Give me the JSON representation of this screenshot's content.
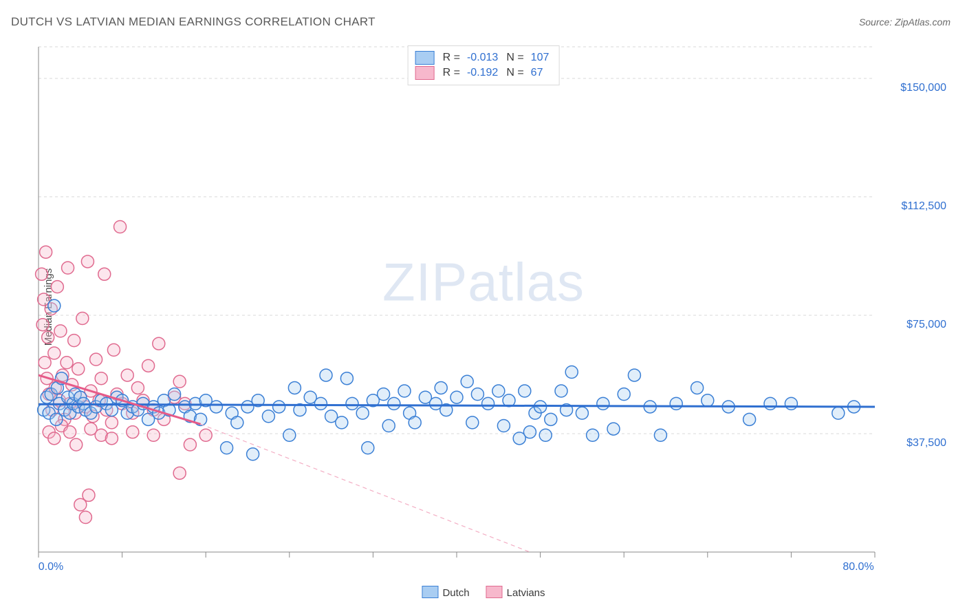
{
  "title": "DUTCH VS LATVIAN MEDIAN EARNINGS CORRELATION CHART",
  "source_label": "Source: ",
  "source_name": "ZipAtlas.com",
  "watermark": {
    "bold": "ZIP",
    "thin": "atlas"
  },
  "ylabel": "Median Earnings",
  "chart": {
    "type": "scatter",
    "background_color": "#ffffff",
    "grid_color": "#d9d9d9",
    "axis_color": "#888888",
    "xlim": [
      0,
      80
    ],
    "ylim": [
      0,
      160000
    ],
    "x_tick_positions": [
      0,
      8,
      16,
      24,
      32,
      40,
      48,
      56,
      64,
      72,
      80
    ],
    "x_tick_labels": {
      "0": "0.0%",
      "80": "80.0%"
    },
    "y_grid_values": [
      37500,
      75000,
      112500,
      150000
    ],
    "y_tick_labels": [
      "$37,500",
      "$75,000",
      "$112,500",
      "$150,000"
    ],
    "marker_radius": 9,
    "marker_stroke_width": 1.5,
    "marker_fill_opacity": 0.35,
    "series": [
      {
        "name": "Dutch",
        "label": "Dutch",
        "color_stroke": "#3a7fd5",
        "color_fill": "#a9cdf2",
        "R": "-0.013",
        "N": "107",
        "regression": {
          "x1": 0,
          "y1": 46800,
          "x2": 80,
          "y2": 46000,
          "stroke": "#2f6fd0",
          "width": 3,
          "dash": ""
        },
        "points": [
          [
            0.5,
            45000
          ],
          [
            0.8,
            49000
          ],
          [
            1.0,
            44000
          ],
          [
            1.2,
            50000
          ],
          [
            1.5,
            78000
          ],
          [
            1.7,
            42000
          ],
          [
            1.8,
            52000
          ],
          [
            2.0,
            47000
          ],
          [
            2.2,
            55000
          ],
          [
            2.5,
            45000
          ],
          [
            2.8,
            49000
          ],
          [
            3.0,
            44000
          ],
          [
            3.3,
            47000
          ],
          [
            3.5,
            50000
          ],
          [
            3.8,
            46000
          ],
          [
            4.0,
            49000
          ],
          [
            4.3,
            47000
          ],
          [
            4.5,
            45000
          ],
          [
            5.0,
            44000
          ],
          [
            5.5,
            46000
          ],
          [
            6.0,
            48000
          ],
          [
            6.5,
            47000
          ],
          [
            7.0,
            45000
          ],
          [
            7.5,
            49000
          ],
          [
            8.0,
            48000
          ],
          [
            8.5,
            44000
          ],
          [
            9.0,
            46000
          ],
          [
            9.5,
            45000
          ],
          [
            10.0,
            47000
          ],
          [
            10.5,
            42000
          ],
          [
            11.0,
            46000
          ],
          [
            11.5,
            44000
          ],
          [
            12.0,
            48000
          ],
          [
            12.5,
            45000
          ],
          [
            13.0,
            50000
          ],
          [
            14.0,
            46000
          ],
          [
            14.5,
            43000
          ],
          [
            15.0,
            47000
          ],
          [
            15.5,
            42000
          ],
          [
            16.0,
            48000
          ],
          [
            17.0,
            46000
          ],
          [
            18.0,
            33000
          ],
          [
            18.5,
            44000
          ],
          [
            19.0,
            41000
          ],
          [
            20.0,
            46000
          ],
          [
            20.5,
            31000
          ],
          [
            21.0,
            48000
          ],
          [
            22.0,
            43000
          ],
          [
            23.0,
            46000
          ],
          [
            24.0,
            37000
          ],
          [
            24.5,
            52000
          ],
          [
            25.0,
            45000
          ],
          [
            26.0,
            49000
          ],
          [
            27.0,
            47000
          ],
          [
            27.5,
            56000
          ],
          [
            28.0,
            43000
          ],
          [
            29.0,
            41000
          ],
          [
            29.5,
            55000
          ],
          [
            30.0,
            47000
          ],
          [
            31.0,
            44000
          ],
          [
            31.5,
            33000
          ],
          [
            32.0,
            48000
          ],
          [
            33.0,
            50000
          ],
          [
            33.5,
            40000
          ],
          [
            34.0,
            47000
          ],
          [
            35.0,
            51000
          ],
          [
            35.5,
            44000
          ],
          [
            36.0,
            41000
          ],
          [
            37.0,
            49000
          ],
          [
            38.0,
            47000
          ],
          [
            38.5,
            52000
          ],
          [
            39.0,
            45000
          ],
          [
            40.0,
            49000
          ],
          [
            41.0,
            54000
          ],
          [
            41.5,
            41000
          ],
          [
            42.0,
            50000
          ],
          [
            43.0,
            47000
          ],
          [
            44.0,
            51000
          ],
          [
            44.5,
            40000
          ],
          [
            45.0,
            48000
          ],
          [
            46.0,
            36000
          ],
          [
            46.5,
            51000
          ],
          [
            47.0,
            38000
          ],
          [
            47.5,
            44000
          ],
          [
            48.0,
            46000
          ],
          [
            48.5,
            37000
          ],
          [
            49.0,
            42000
          ],
          [
            50.0,
            51000
          ],
          [
            50.5,
            45000
          ],
          [
            51.0,
            57000
          ],
          [
            52.0,
            44000
          ],
          [
            53.0,
            37000
          ],
          [
            54.0,
            47000
          ],
          [
            55.0,
            39000
          ],
          [
            56.0,
            50000
          ],
          [
            57.0,
            56000
          ],
          [
            58.5,
            46000
          ],
          [
            59.5,
            37000
          ],
          [
            61.0,
            47000
          ],
          [
            63.0,
            52000
          ],
          [
            64.0,
            48000
          ],
          [
            66.0,
            46000
          ],
          [
            68.0,
            42000
          ],
          [
            70.0,
            47000
          ],
          [
            72.0,
            47000
          ],
          [
            76.5,
            44000
          ],
          [
            78.0,
            46000
          ]
        ]
      },
      {
        "name": "Latvians",
        "label": "Latvians",
        "color_stroke": "#e06a8f",
        "color_fill": "#f7b8cc",
        "R": "-0.192",
        "N": "67",
        "regression": {
          "x1": 0,
          "y1": 56000,
          "x2": 15.5,
          "y2": 40500,
          "stroke": "#e65a88",
          "width": 3,
          "dash": ""
        },
        "regression_ext": {
          "x1": 15.5,
          "y1": 40500,
          "x2": 47,
          "y2": 0,
          "stroke": "#f3aec4",
          "width": 1.2,
          "dash": "6 5"
        },
        "points": [
          [
            0.3,
            88000
          ],
          [
            0.4,
            72000
          ],
          [
            0.5,
            80000
          ],
          [
            0.6,
            60000
          ],
          [
            0.7,
            95000
          ],
          [
            0.8,
            55000
          ],
          [
            0.9,
            68000
          ],
          [
            1.0,
            50000
          ],
          [
            1.2,
            77000
          ],
          [
            1.3,
            45000
          ],
          [
            1.5,
            63000
          ],
          [
            1.6,
            52000
          ],
          [
            1.8,
            84000
          ],
          [
            2.0,
            48000
          ],
          [
            2.1,
            70000
          ],
          [
            2.3,
            56000
          ],
          [
            2.5,
            42000
          ],
          [
            2.7,
            60000
          ],
          [
            2.8,
            90000
          ],
          [
            3.0,
            47000
          ],
          [
            3.2,
            53000
          ],
          [
            3.4,
            67000
          ],
          [
            3.5,
            44000
          ],
          [
            3.8,
            58000
          ],
          [
            4.0,
            49000
          ],
          [
            4.2,
            74000
          ],
          [
            4.5,
            46000
          ],
          [
            4.7,
            92000
          ],
          [
            5.0,
            51000
          ],
          [
            5.2,
            43000
          ],
          [
            5.5,
            61000
          ],
          [
            5.8,
            48000
          ],
          [
            6.0,
            55000
          ],
          [
            6.3,
            88000
          ],
          [
            6.5,
            45000
          ],
          [
            7.0,
            41000
          ],
          [
            7.2,
            64000
          ],
          [
            7.5,
            50000
          ],
          [
            7.8,
            103000
          ],
          [
            8.0,
            47000
          ],
          [
            8.5,
            56000
          ],
          [
            9.0,
            44000
          ],
          [
            9.5,
            52000
          ],
          [
            10.0,
            48000
          ],
          [
            10.5,
            59000
          ],
          [
            11.0,
            45000
          ],
          [
            11.5,
            66000
          ],
          [
            12.0,
            42000
          ],
          [
            13.0,
            49000
          ],
          [
            13.5,
            54000
          ],
          [
            14.0,
            47000
          ],
          [
            1.0,
            38000
          ],
          [
            1.5,
            36000
          ],
          [
            2.2,
            40000
          ],
          [
            3.0,
            38000
          ],
          [
            3.6,
            34000
          ],
          [
            4.0,
            15000
          ],
          [
            4.5,
            11000
          ],
          [
            4.8,
            18000
          ],
          [
            5.0,
            39000
          ],
          [
            6.0,
            37000
          ],
          [
            7.0,
            36000
          ],
          [
            9.0,
            38000
          ],
          [
            11.0,
            37000
          ],
          [
            13.5,
            25000
          ],
          [
            14.5,
            34000
          ],
          [
            16.0,
            37000
          ]
        ]
      }
    ]
  },
  "legend_top_labels": {
    "R": "R =",
    "N": "N ="
  },
  "legend_bottom": [
    {
      "key": "Dutch",
      "swatch_fill": "#a9cdf2",
      "swatch_stroke": "#3a7fd5"
    },
    {
      "key": "Latvians",
      "swatch_fill": "#f7b8cc",
      "swatch_stroke": "#e06a8f"
    }
  ]
}
